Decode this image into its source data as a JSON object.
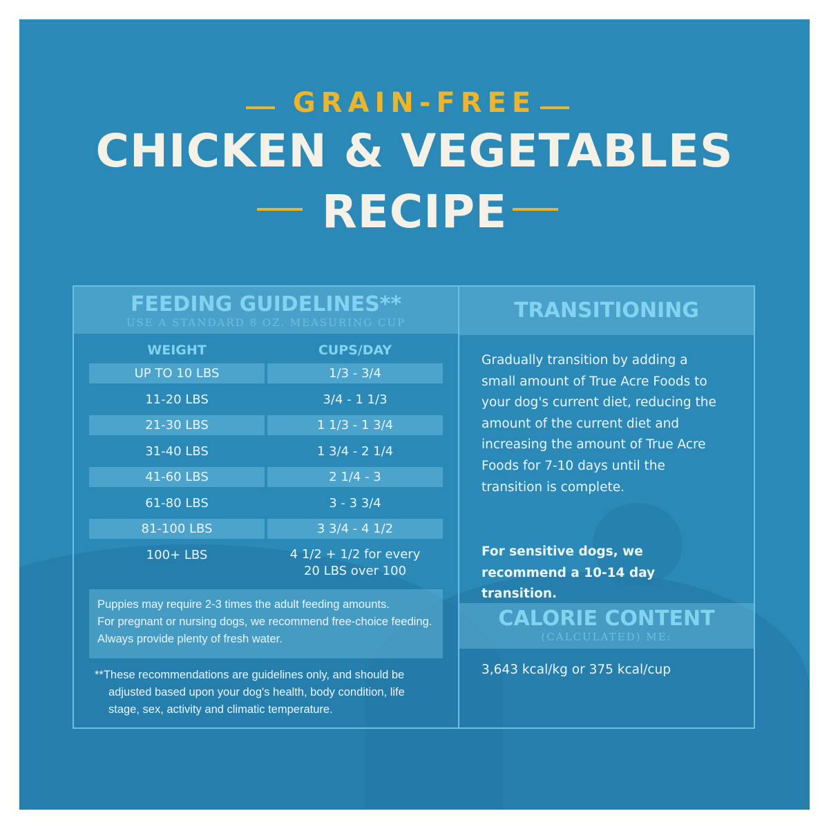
{
  "header": {
    "eyebrow": "GRAIN-FREE",
    "title_line1": "CHICKEN & VEGETABLES",
    "title_line2": "RECIPE"
  },
  "feeding": {
    "title": "FEEDING GUIDELINES**",
    "subtitle": "USE A STANDARD 8 OZ. MEASURING CUP",
    "columns": [
      "WEIGHT",
      "CUPS/DAY"
    ],
    "rows": [
      [
        "UP TO 10 LBS",
        "1/3 - 3/4"
      ],
      [
        "11-20 LBS",
        "3/4 - 1 1/3"
      ],
      [
        "21-30 LBS",
        "1 1/3 - 1 3/4"
      ],
      [
        "31-40 LBS",
        "1 3/4 - 2 1/4"
      ],
      [
        "41-60 LBS",
        "2 1/4 - 3"
      ],
      [
        "61-80 LBS",
        "3 - 3 3/4"
      ],
      [
        "81-100 LBS",
        "3 3/4 - 4 1/2"
      ],
      [
        "100+ LBS",
        "4 1/2 + 1/2 for every 20 LBS over 100"
      ]
    ],
    "notes": [
      "Puppies may require 2-3 times the adult feeding amounts.",
      "For pregnant or nursing dogs, we recommend free-choice feeding.",
      "Always provide plenty of fresh water."
    ],
    "footnote": "**These recommendations are guidelines only, and should be adjusted based upon your dog's health, body condition, life stage, sex, activity and climatic temperature."
  },
  "transitioning": {
    "title": "TRANSITIONING",
    "body": "Gradually transition by adding a small amount of True Acre Foods to your dog's current diet, reducing the amount of the current diet and increasing the amount of True Acre Foods for 7-10 days until the transition is complete.",
    "emphasis": "For sensitive dogs, we recommend a 10-14 day transition."
  },
  "calorie": {
    "title": "CALORIE CONTENT",
    "subtitle": "(CALCULATED) ME:",
    "value": "3,643 kcal/kg or 375 kcal/cup"
  },
  "colors": {
    "background": "#2b89b7",
    "accent": "#f0b429",
    "heading": "#82d3ef",
    "title": "#f5f1e6"
  }
}
